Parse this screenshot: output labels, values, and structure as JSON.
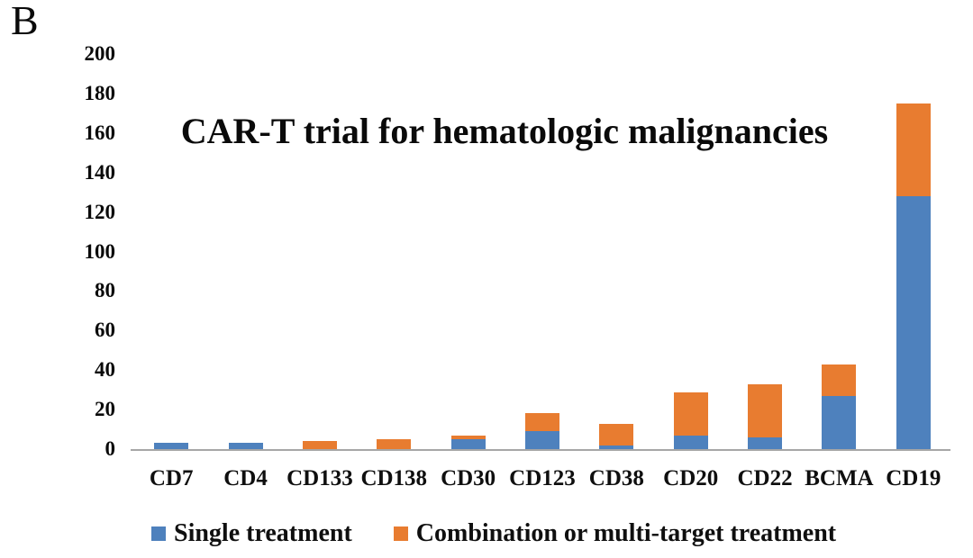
{
  "panel_label": "B",
  "chart_data": {
    "type": "bar",
    "stacked": true,
    "title": "CAR-T trial for hematologic malignancies",
    "categories": [
      "CD7",
      "CD4",
      "CD133",
      "CD138",
      "CD30",
      "CD123",
      "CD38",
      "CD20",
      "CD22",
      "BCMA",
      "CD19"
    ],
    "series": [
      {
        "name": "Single treatment",
        "color": "#4E81BD",
        "values": [
          3,
          3,
          0,
          0,
          5,
          9,
          2,
          7,
          6,
          27,
          128
        ]
      },
      {
        "name": "Combination or multi-target treatment",
        "color": "#E87C30",
        "values": [
          0,
          0,
          4,
          5,
          2,
          9,
          11,
          22,
          27,
          16,
          47
        ]
      }
    ],
    "xlabel": "",
    "ylabel": "",
    "ylim": [
      0,
      200
    ],
    "ytick_step": 20,
    "ytick_labels": [
      "0",
      "20",
      "40",
      "60",
      "80",
      "100",
      "120",
      "140",
      "160",
      "180",
      "200"
    ],
    "grid": false,
    "legend_position": "bottom",
    "axis_color": "#A6A6A6"
  }
}
